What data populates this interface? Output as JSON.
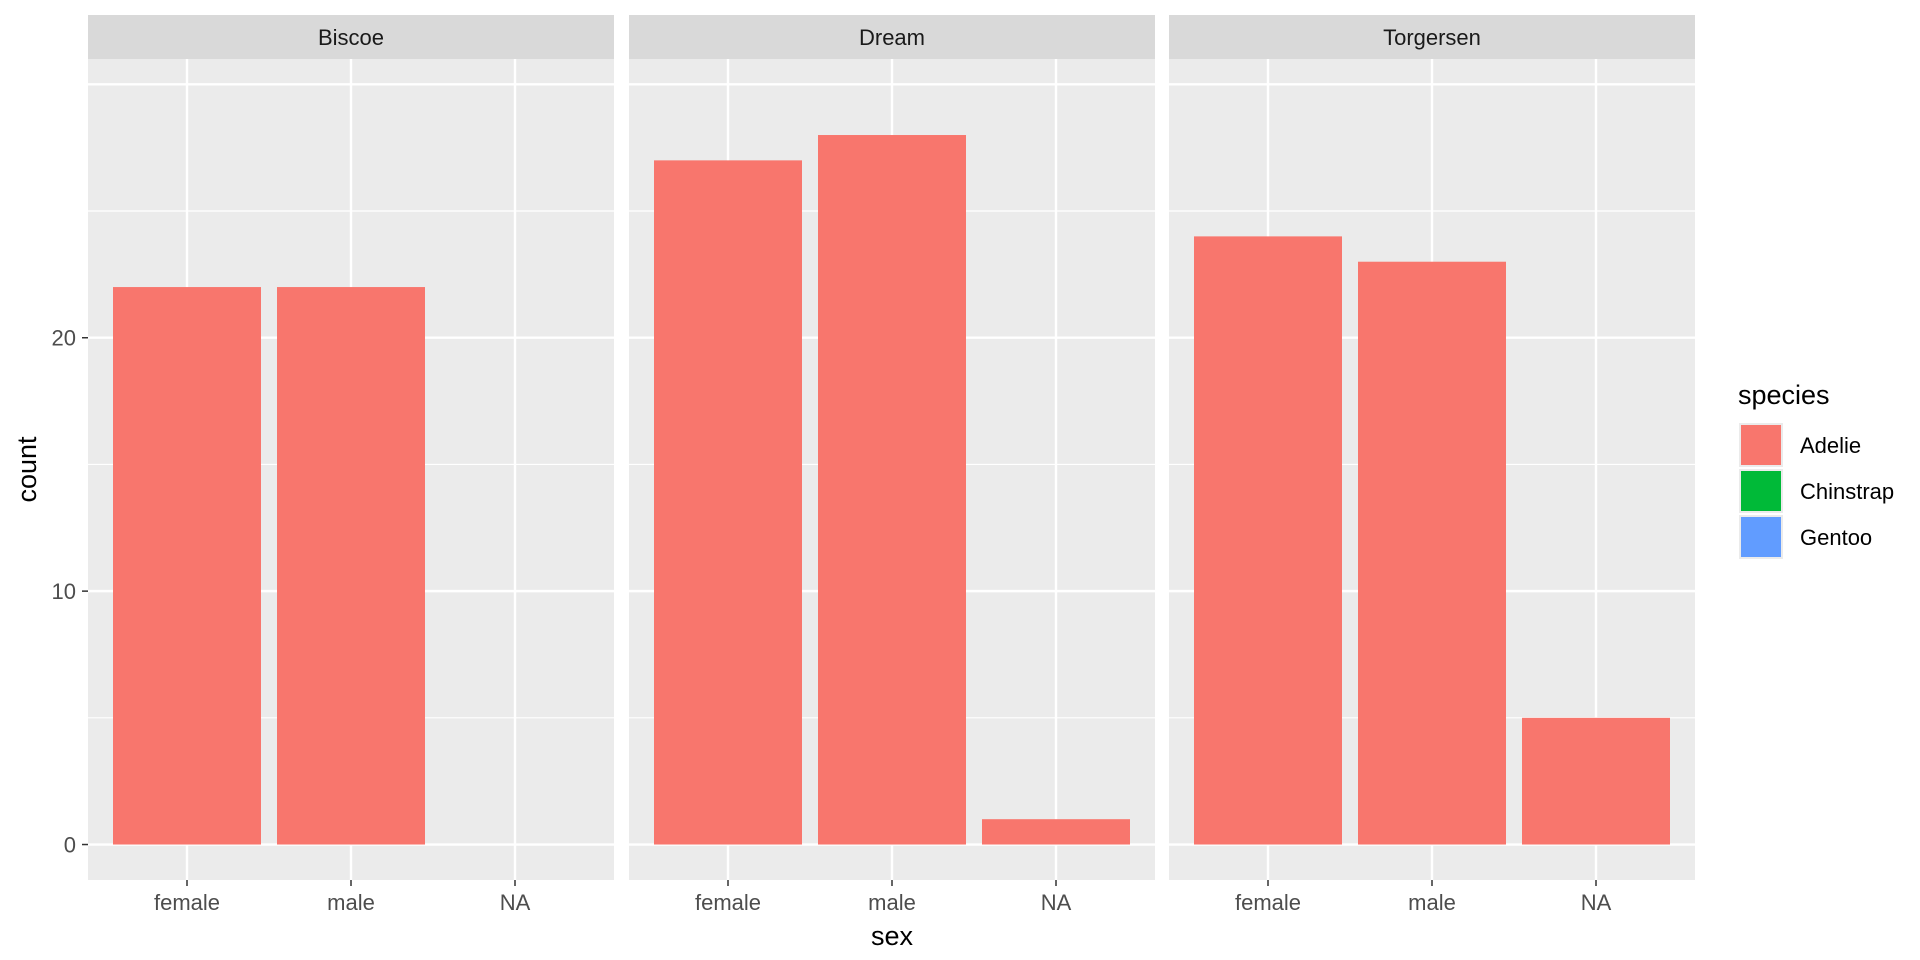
{
  "chart_data": {
    "type": "bar",
    "facet_by": "island",
    "panels": [
      {
        "name": "Biscoe",
        "categories": [
          "female",
          "male",
          "NA"
        ],
        "values": [
          22,
          22,
          0
        ]
      },
      {
        "name": "Dream",
        "categories": [
          "female",
          "male",
          "NA"
        ],
        "values": [
          27,
          28,
          1
        ]
      },
      {
        "name": "Torgersen",
        "categories": [
          "female",
          "male",
          "NA"
        ],
        "values": [
          24,
          23,
          5
        ]
      }
    ],
    "series_name": "Adelie",
    "xlabel": "sex",
    "ylabel": "count",
    "ylim": [
      -1.4,
      31
    ],
    "yticks": [
      0,
      10,
      20
    ],
    "grid": true,
    "legend": {
      "title": "species",
      "position": "right",
      "items": [
        {
          "label": "Adelie",
          "color": "#F8766D"
        },
        {
          "label": "Chinstrap",
          "color": "#00BA38"
        },
        {
          "label": "Gentoo",
          "color": "#619CFF"
        }
      ]
    },
    "colors": {
      "panel_bg": "#EBEBEB",
      "strip_bg": "#D9D9D9",
      "grid": "#FFFFFF",
      "bar": "#F8766D"
    }
  }
}
